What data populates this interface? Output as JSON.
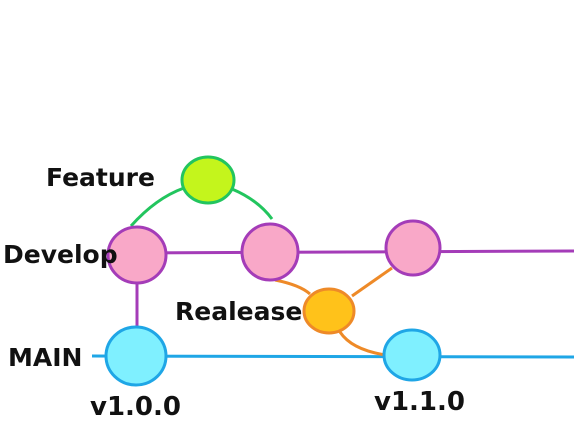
{
  "diagram": {
    "type": "git-branching-flow",
    "branches": {
      "feature": {
        "label": "Feature",
        "color": "#c4f51c",
        "stroke": "#22c55e",
        "line_color": "#22c55e"
      },
      "develop": {
        "label": "Develop",
        "color": "#f9a8c8",
        "stroke": "#a43cb8",
        "line_color": "#a43cb8"
      },
      "release": {
        "label": "Realease",
        "color": "#ffc21a",
        "stroke": "#ee8a28",
        "line_color": "#ee8a28"
      },
      "main": {
        "label": "MAIN",
        "color": "#7ff0ff",
        "stroke": "#1fa6e6",
        "line_color": "#1fa6e6"
      }
    },
    "tags": {
      "first": "v1.0.0",
      "second": "v1.1.0"
    }
  }
}
